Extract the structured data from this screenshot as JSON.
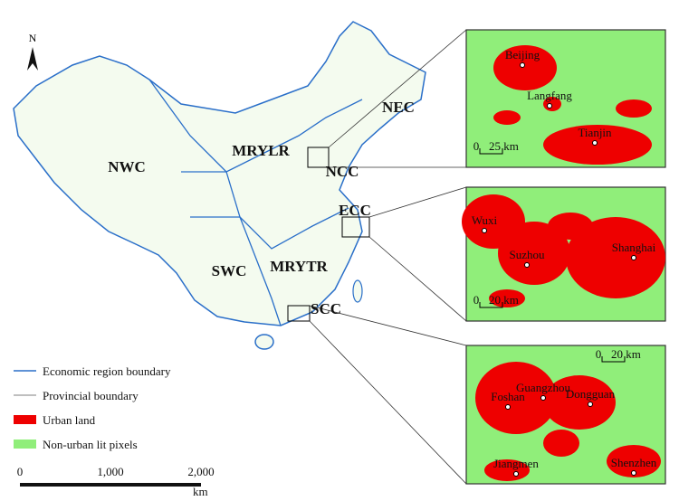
{
  "north_arrow": "N",
  "regions": [
    "NWC",
    "MRYLR",
    "NEC",
    "NCC",
    "ECC",
    "SWC",
    "MRYTR",
    "SCC"
  ],
  "legend": [
    "Economic region boundary",
    "Provincial boundary",
    "Urban land",
    "Non-urban lit pixels"
  ],
  "scale_bar": {
    "ticks": [
      "0",
      "1,000",
      "2,000"
    ],
    "unit": "km"
  },
  "insets": [
    {
      "cities": [
        "Beijing",
        "Langfang",
        "Tianjin"
      ],
      "scale": [
        "0",
        "25 km"
      ]
    },
    {
      "cities": [
        "Wuxi",
        "Suzhou",
        "Shanghai"
      ],
      "scale": [
        "0",
        "20 km"
      ]
    },
    {
      "cities": [
        "Guangzhou",
        "Foshan",
        "Dongguan",
        "Jiangmen",
        "Shenzhen"
      ],
      "scale": [
        "0",
        "20 km"
      ]
    }
  ]
}
